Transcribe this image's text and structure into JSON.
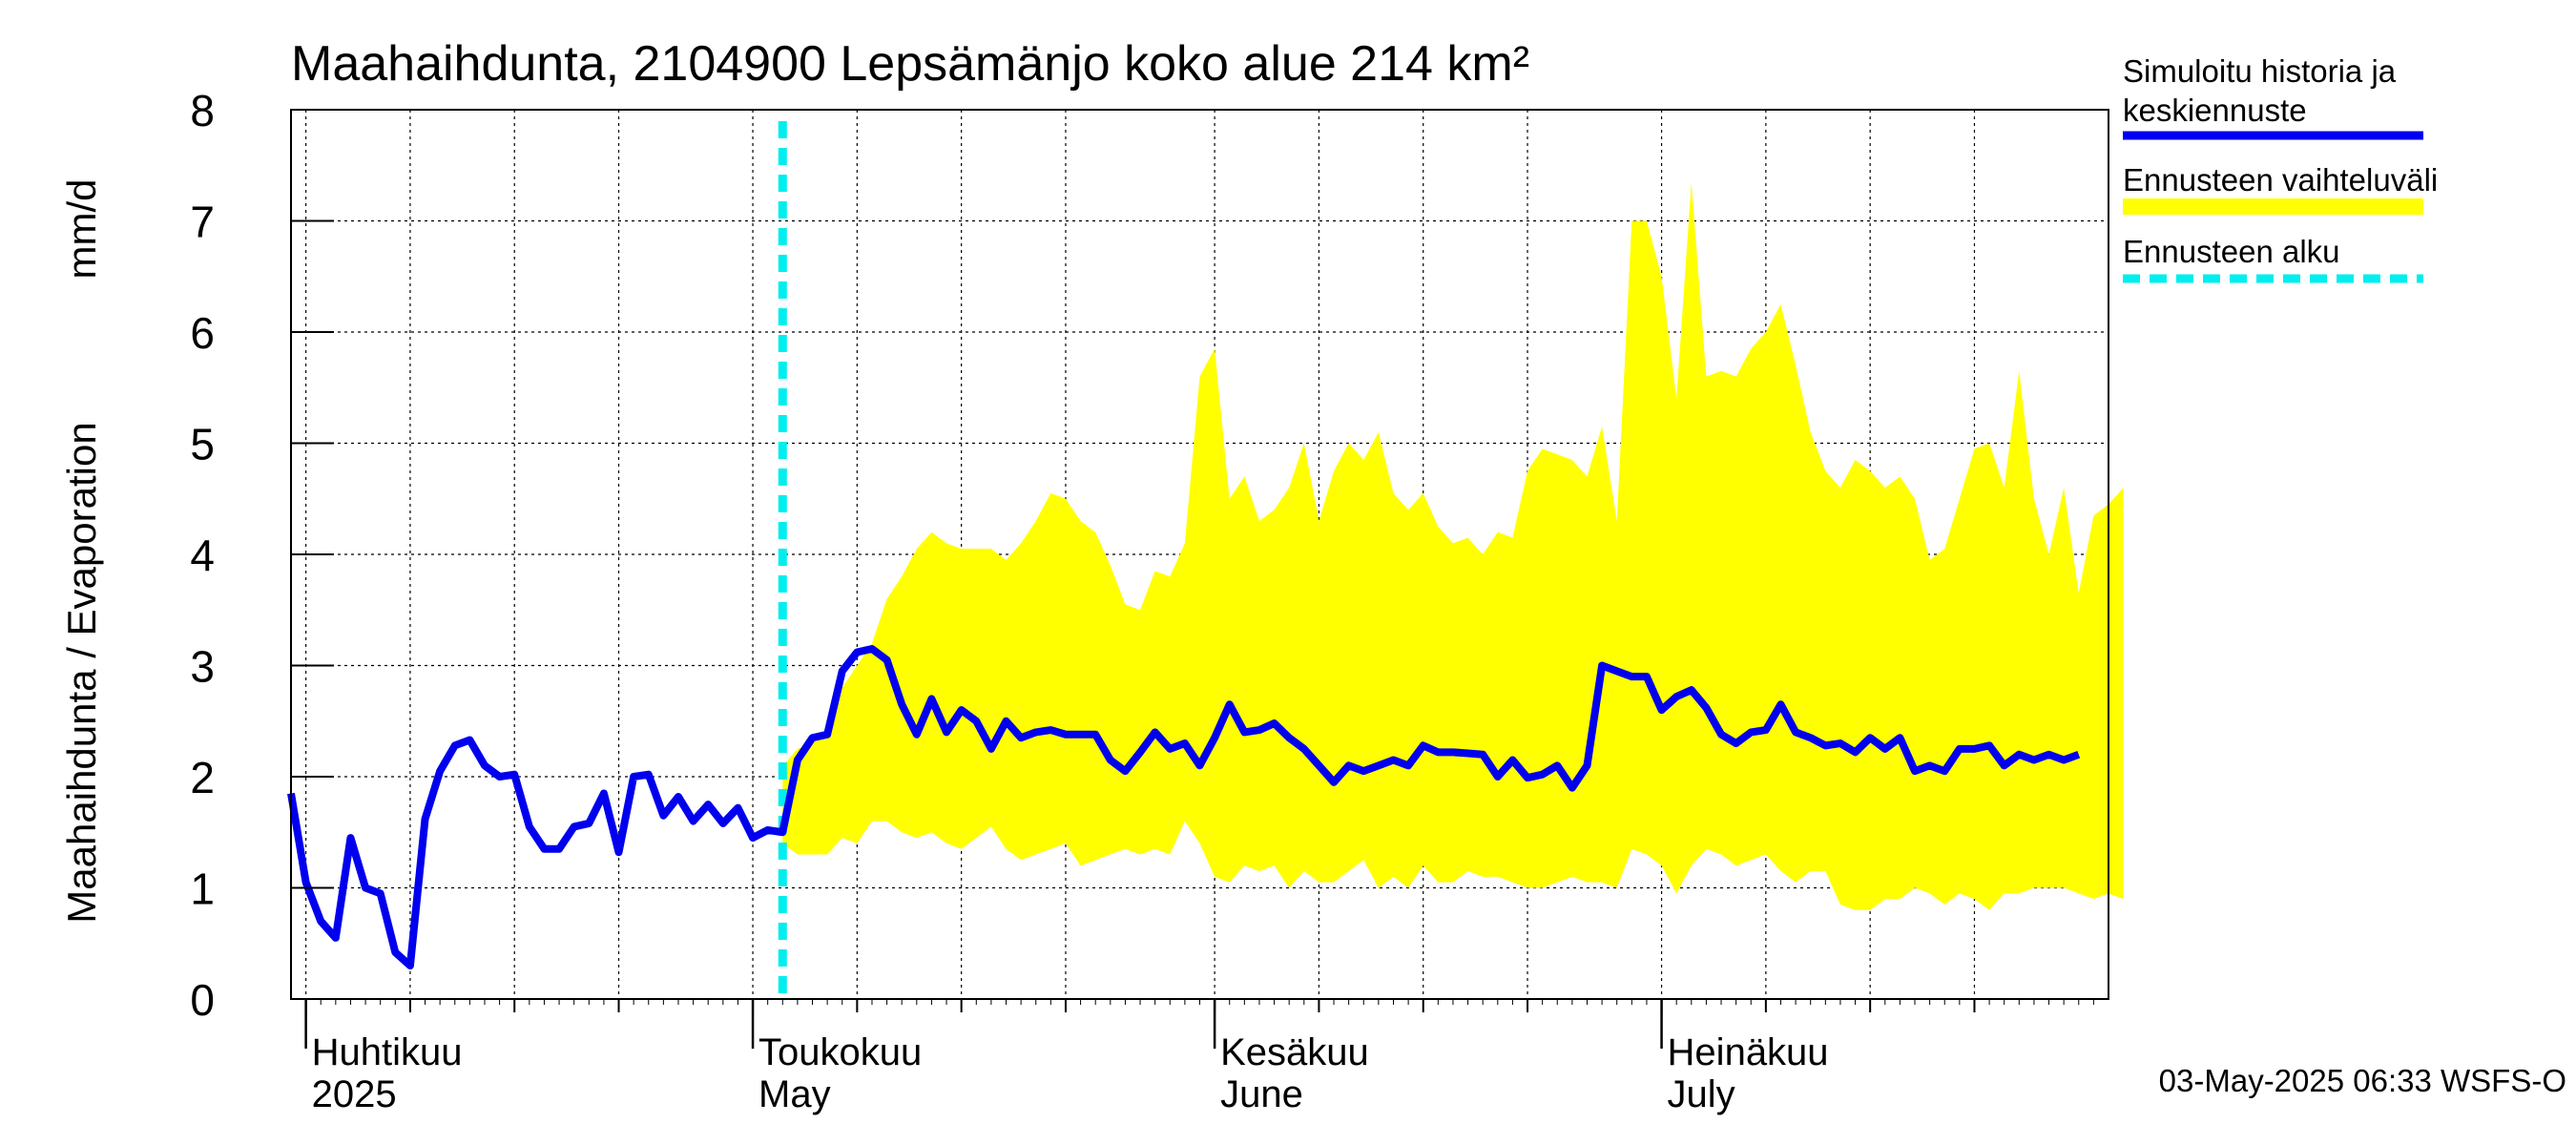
{
  "chart_data": {
    "type": "area",
    "title": "Maahaihdunta, 2104900 Lepsämänjo koko alue 214 km²",
    "ylabel_left": "Maahaihdunta / Evaporation",
    "ylabel_unit": "mm/d",
    "ylim": [
      0,
      8
    ],
    "yticks": [
      0,
      1,
      2,
      3,
      4,
      5,
      6,
      7,
      8
    ],
    "xlim": [
      "2025-03-31",
      "2025-07-31"
    ],
    "grid": true,
    "legend_position": "top-right",
    "month_labels": [
      {
        "date": "2025-04-01",
        "fi": "Huhtikuu",
        "en": "2025"
      },
      {
        "date": "2025-05-01",
        "fi": "Toukokuu",
        "en": "May"
      },
      {
        "date": "2025-06-01",
        "fi": "Kesäkuu",
        "en": "June"
      },
      {
        "date": "2025-07-01",
        "fi": "Heinäkuu",
        "en": "July"
      }
    ],
    "forecast_start": "2025-05-03",
    "colors": {
      "series": "#0000ee",
      "band": "#ffff00",
      "forecast_line": "#00eeee"
    },
    "series": [
      {
        "name": "Simuloitu historia ja keskiennuste",
        "start_date": "2025-03-31",
        "values": [
          1.85,
          1.05,
          0.7,
          0.55,
          1.45,
          1.0,
          0.95,
          0.42,
          0.3,
          1.62,
          2.05,
          2.28,
          2.33,
          2.1,
          2.0,
          2.02,
          1.55,
          1.35,
          1.35,
          1.55,
          1.58,
          1.85,
          1.32,
          2.0,
          2.02,
          1.65,
          1.82,
          1.6,
          1.75,
          1.58,
          1.72,
          1.45,
          1.52,
          1.5,
          2.15,
          2.35,
          2.38,
          2.95,
          3.12,
          3.15,
          3.05,
          2.65,
          2.38,
          2.7,
          2.4,
          2.6,
          2.5,
          2.25,
          2.5,
          2.35,
          2.4,
          2.42,
          2.38,
          2.38,
          2.38,
          2.15,
          2.05,
          2.22,
          2.4,
          2.25,
          2.3,
          2.1,
          2.35,
          2.65,
          2.4,
          2.42,
          2.48,
          2.35,
          2.25,
          2.1,
          1.95,
          2.1,
          2.05,
          2.1,
          2.15,
          2.1,
          2.28,
          2.22,
          2.22,
          2.21,
          2.2,
          2.0,
          2.15,
          1.99,
          2.02,
          2.1,
          1.9,
          2.1,
          3.0,
          2.95,
          2.9,
          2.9,
          2.6,
          2.72,
          2.78,
          2.62,
          2.38,
          2.3,
          2.4,
          2.42,
          2.65,
          2.4,
          2.35,
          2.28,
          2.3,
          2.22,
          2.35,
          2.25,
          2.35,
          2.05,
          2.1,
          2.05,
          2.25,
          2.25,
          2.28,
          2.1,
          2.2,
          2.15,
          2.2,
          2.15,
          2.2
        ]
      }
    ],
    "band": {
      "name": "Ennusteen vaihteluväli",
      "start_date": "2025-05-03",
      "upper": [
        2.1,
        2.25,
        2.3,
        2.4,
        2.8,
        3.0,
        3.2,
        3.6,
        3.8,
        4.05,
        4.2,
        4.1,
        4.05,
        4.05,
        4.05,
        3.95,
        4.1,
        4.3,
        4.55,
        4.5,
        4.3,
        4.2,
        3.9,
        3.55,
        3.5,
        3.85,
        3.8,
        4.1,
        5.6,
        5.85,
        4.5,
        4.7,
        4.3,
        4.4,
        4.6,
        5.0,
        4.3,
        4.75,
        5.0,
        4.85,
        5.1,
        4.55,
        4.4,
        4.55,
        4.25,
        4.1,
        4.15,
        4.0,
        4.2,
        4.15,
        4.75,
        4.95,
        4.9,
        4.85,
        4.7,
        5.15,
        4.3,
        7.0,
        7.0,
        6.5,
        5.4,
        7.35,
        5.6,
        5.65,
        5.6,
        5.85,
        6.0,
        6.25,
        5.7,
        5.1,
        4.75,
        4.6,
        4.85,
        4.75,
        4.6,
        4.7,
        4.5,
        3.95,
        4.05,
        4.5,
        4.95,
        5.0,
        4.6,
        5.65,
        4.5,
        4.0,
        4.6,
        3.65,
        4.35,
        4.45,
        4.6
      ],
      "lower": [
        1.4,
        1.3,
        1.3,
        1.3,
        1.45,
        1.4,
        1.6,
        1.6,
        1.5,
        1.45,
        1.5,
        1.4,
        1.35,
        1.45,
        1.55,
        1.35,
        1.25,
        1.3,
        1.35,
        1.4,
        1.2,
        1.25,
        1.3,
        1.35,
        1.3,
        1.35,
        1.3,
        1.6,
        1.4,
        1.1,
        1.05,
        1.2,
        1.15,
        1.2,
        1.0,
        1.15,
        1.05,
        1.05,
        1.15,
        1.25,
        1.0,
        1.1,
        1.0,
        1.2,
        1.05,
        1.05,
        1.15,
        1.1,
        1.1,
        1.05,
        1.0,
        1.0,
        1.05,
        1.1,
        1.05,
        1.05,
        1.0,
        1.35,
        1.3,
        1.2,
        0.95,
        1.2,
        1.35,
        1.3,
        1.2,
        1.25,
        1.3,
        1.15,
        1.05,
        1.15,
        1.15,
        0.85,
        0.8,
        0.8,
        0.9,
        0.9,
        1.0,
        0.95,
        0.85,
        0.95,
        0.9,
        0.8,
        0.95,
        0.95,
        1.0,
        1.0,
        1.0,
        0.95,
        0.9,
        0.95,
        0.9
      ]
    }
  },
  "legend": {
    "series_line1": "Simuloitu historia ja",
    "series_line2": "keskiennuste",
    "band_label": "Ennusteen vaihteluväli",
    "forecast_label": "Ennusteen alku"
  },
  "footer": {
    "timestamp": "03-May-2025 06:33 WSFS-O"
  }
}
